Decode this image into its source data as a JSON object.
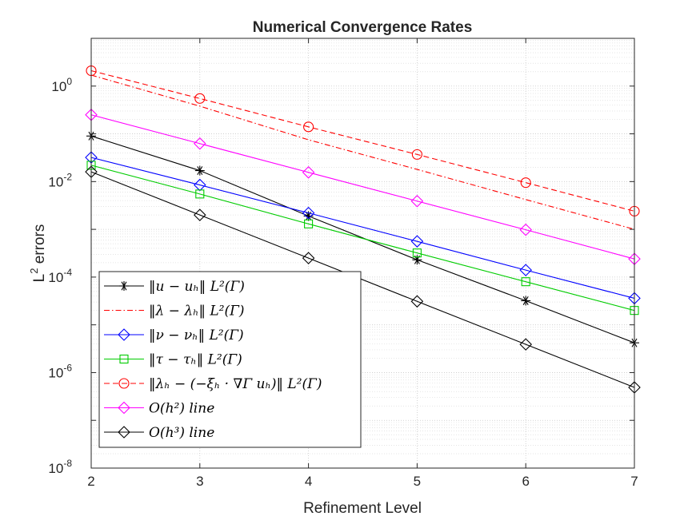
{
  "chart_data": {
    "type": "line",
    "title": "Numerical Convergence Rates",
    "xlabel": "Refinement Level",
    "ylabel": "L² errors",
    "ylabel_base": "L",
    "ylabel_sup": "2",
    "ylabel_rest": " errors",
    "yscale": "log",
    "xlim": [
      2,
      7
    ],
    "ylim": [
      1e-08,
      10
    ],
    "grid": true,
    "minor_grid": true,
    "legend_position": "bottom-left",
    "x": [
      2,
      3,
      4,
      5,
      6,
      7
    ],
    "x_tick_labels": [
      "2",
      "3",
      "4",
      "5",
      "6",
      "7"
    ],
    "y_ticks": [
      {
        "value": 1,
        "base": "10",
        "exp": "0"
      },
      {
        "value": 0.01,
        "base": "10",
        "exp": "-2"
      },
      {
        "value": 0.0001,
        "base": "10",
        "exp": "-4"
      },
      {
        "value": 1e-06,
        "base": "10",
        "exp": "-6"
      },
      {
        "value": 1e-08,
        "base": "10",
        "exp": "-8"
      }
    ],
    "series": [
      {
        "name": "‖u − u_h‖_{L²(Γ)}",
        "legend": "‖u − uₕ‖ L²(Γ)",
        "color": "#000000",
        "linestyle": "solid",
        "marker": "asterisk",
        "values": [
          0.09,
          0.017,
          0.0019,
          0.00023,
          3.2e-05,
          4.2e-06
        ]
      },
      {
        "name": "‖λ − λ_h‖_{L²(Γ)}",
        "legend": "‖λ − λₕ‖ L²(Γ)",
        "color": "#ff0000",
        "linestyle": "dashdot",
        "marker": "none",
        "values": [
          1.7,
          0.38,
          0.075,
          0.018,
          0.0042,
          0.001
        ]
      },
      {
        "name": "‖ν − ν_h‖_{L²(Γ)}",
        "legend": "‖ν − νₕ‖ L²(Γ)",
        "color": "#0000ff",
        "linestyle": "solid",
        "marker": "diamond",
        "values": [
          0.032,
          0.0085,
          0.0022,
          0.00056,
          0.00014,
          3.6e-05
        ]
      },
      {
        "name": "‖τ − τ_h‖_{L²(Γ)}",
        "legend": "‖τ − τₕ‖ L²(Γ)",
        "color": "#00cc00",
        "linestyle": "solid",
        "marker": "square",
        "values": [
          0.022,
          0.0055,
          0.0013,
          0.00032,
          8e-05,
          2e-05
        ]
      },
      {
        "name": "‖λ_h − (−ξ_h · ∇_Γ u_h)‖_{L²(Γ)}",
        "legend": "‖λₕ − (−ξₕ · ∇Γ uₕ)‖ L²(Γ)",
        "color": "#ff0000",
        "linestyle": "dashed",
        "marker": "circle",
        "values": [
          2.1,
          0.55,
          0.14,
          0.037,
          0.0095,
          0.0024
        ]
      },
      {
        "name": "O(h²) line",
        "legend": "O(h²) line",
        "color": "#ff00ff",
        "linestyle": "solid",
        "marker": "diamond",
        "values": [
          0.25,
          0.0625,
          0.0156,
          0.0039,
          0.00098,
          0.00024
        ]
      },
      {
        "name": "O(h³) line",
        "legend": "O(h³) line",
        "color": "#000000",
        "linestyle": "solid",
        "marker": "diamond",
        "values": [
          0.016,
          0.002,
          0.00025,
          3.1e-05,
          3.9e-06,
          4.9e-07
        ]
      }
    ]
  }
}
